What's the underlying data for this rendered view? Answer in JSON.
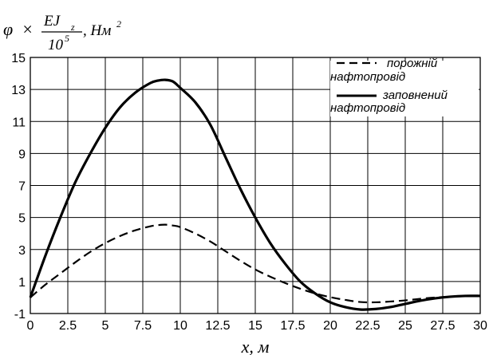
{
  "chart_data": {
    "type": "line",
    "ylabel": {
      "symbol": "φ",
      "times": "×",
      "numerator": "EJ",
      "subscript": "z",
      "denominator": "10",
      "exponent": "5",
      "unit": ", Нм",
      "unit_exp": "2"
    },
    "xlabel": "x, м",
    "xlim": [
      0,
      30
    ],
    "ylim": [
      -1,
      15
    ],
    "x_ticks": [
      "0",
      "2.5",
      "5",
      "7.5",
      "10",
      "12.5",
      "15",
      "17.5",
      "20",
      "22.5",
      "25",
      "27.5",
      "30"
    ],
    "y_ticks": [
      "15",
      "13",
      "11",
      "9",
      "7",
      "5",
      "3",
      "1",
      "-1"
    ],
    "grid": true,
    "legend_position": "top-right",
    "series": [
      {
        "name": "порожній нафтопровід",
        "name_lines": [
          "порожній",
          "нафтопровід"
        ],
        "style": "dashed",
        "color": "#000000",
        "x": [
          0,
          1,
          2,
          3,
          4,
          5,
          6,
          7,
          8,
          8.5,
          9,
          9.5,
          10,
          11,
          12,
          13,
          14,
          15,
          16,
          17,
          18,
          19,
          20,
          21,
          22,
          23,
          24,
          25,
          26,
          27,
          28,
          29,
          30
        ],
        "y": [
          0,
          0.8,
          1.5,
          2.2,
          2.85,
          3.4,
          3.85,
          4.2,
          4.45,
          4.52,
          4.55,
          4.5,
          4.4,
          4.0,
          3.5,
          2.9,
          2.3,
          1.75,
          1.3,
          0.9,
          0.55,
          0.25,
          0.02,
          -0.15,
          -0.28,
          -0.3,
          -0.25,
          -0.18,
          -0.08,
          0.0,
          0.05,
          0.08,
          0.1
        ]
      },
      {
        "name": "заповнений нафтопровід",
        "name_lines": [
          "заповнений",
          "нафтопровід"
        ],
        "style": "solid",
        "color": "#000000",
        "x": [
          0,
          1,
          2,
          3,
          4,
          5,
          6,
          7,
          8,
          8.5,
          9,
          9.5,
          10,
          11,
          12,
          13,
          14,
          15,
          16,
          17,
          18,
          19,
          20,
          21,
          22,
          23,
          24,
          25,
          26,
          27,
          28,
          29,
          30
        ],
        "y": [
          0,
          2.6,
          5.0,
          7.2,
          9.0,
          10.6,
          11.9,
          12.8,
          13.4,
          13.55,
          13.6,
          13.5,
          13.1,
          12.2,
          10.8,
          8.8,
          6.8,
          5.0,
          3.4,
          2.1,
          1.0,
          0.25,
          -0.3,
          -0.6,
          -0.75,
          -0.72,
          -0.6,
          -0.4,
          -0.2,
          -0.05,
          0.05,
          0.1,
          0.1
        ]
      }
    ]
  }
}
